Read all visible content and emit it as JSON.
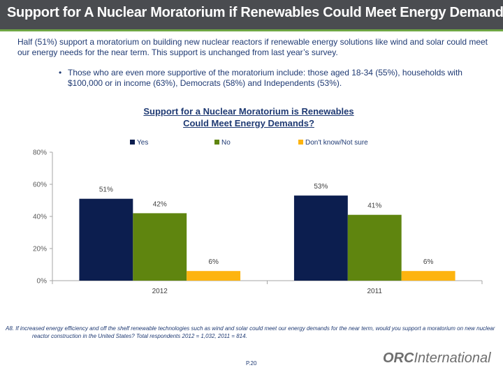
{
  "header": {
    "title": "Support for A Nuclear Moratorium if Renewables Could Meet Energy Demands?"
  },
  "intro": {
    "text": "Half (51%) support a moratorium on building new nuclear reactors if renewable energy solutions like wind and solar could meet our energy needs for the near term.  This support is unchanged from last year’s survey."
  },
  "bullet": {
    "marker": "•",
    "text": "Those who are even more supportive of the moratorium include:  those aged 18-34 (55%), households with $100,000 or in income (63%), Democrats (58%) and Independents (53%)."
  },
  "chart_data": {
    "type": "bar",
    "title_line1": "Support for a Nuclear Moratorium is Renewables",
    "title_line2": "Could Meet Energy Demands?",
    "categories": [
      "2012",
      "2011"
    ],
    "series": [
      {
        "name": "Yes",
        "values": [
          51,
          53
        ],
        "labels": [
          "51%",
          "53%"
        ],
        "color": "#0c1e4f"
      },
      {
        "name": "No",
        "values": [
          42,
          41
        ],
        "labels": [
          "42%",
          "41%"
        ],
        "color": "#5f850f"
      },
      {
        "name": "Don't know/Not sure",
        "values": [
          6,
          6
        ],
        "labels": [
          "6%",
          "6%"
        ],
        "color": "#fdb40f"
      }
    ],
    "ylim": [
      0,
      80
    ],
    "yticks": [
      0,
      20,
      40,
      60,
      80
    ],
    "ytick_labels": [
      "0%",
      "20%",
      "40%",
      "60%",
      "80%"
    ],
    "grid": false,
    "legend_position": "top"
  },
  "footnote": {
    "line1": "A8. If increased energy efficiency and off the shelf renewable technologies such as wind and solar could meet our energy demands for the near term, would you support a moratorium on new nuclear",
    "line2": "reactor construction in the United States?   Total respondents 2012 = 1,032, 2011 = 814."
  },
  "page": {
    "number": "P.20"
  },
  "logo": {
    "part1": "ORC",
    "part2": "International"
  }
}
